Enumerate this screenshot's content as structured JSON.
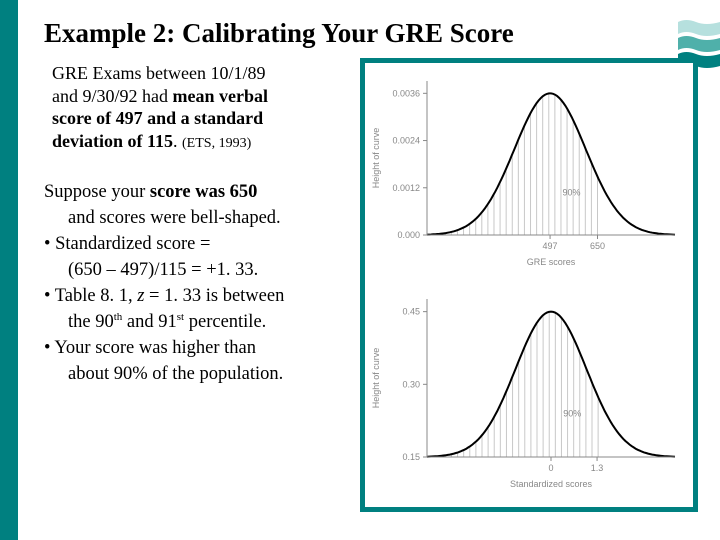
{
  "title": "Example 2:  Calibrating Your GRE Score",
  "intro": {
    "l1a": "GRE Exams between 10/1/89 ",
    "l2a": "and 9/30/92 had ",
    "l2b": "mean verbal ",
    "l3": "score of 497 and a standard ",
    "l4a": "deviation of 115",
    "l4b": ". ",
    "cite": "(ETS, 1993)"
  },
  "body": {
    "p1a": "Suppose your ",
    "p1b": "score was 650",
    "p2": "and scores were bell-shaped.",
    "b1": "• Standardized score =",
    "b1b": "(650 – 497)/115 = +1. 33.",
    "b2a": "• Table 8. 1, ",
    "b2b": "z",
    "b2c": " = 1. 33 is between ",
    "b2d": "the 90",
    "b2e": "th",
    "b2f": " and 91",
    "b2g": "st",
    "b2h": " percentile.",
    "b3a": "• Your score was higher than ",
    "b3b": "about 90% of the population."
  },
  "chart_top": {
    "ylabel": "Height of curve",
    "yticks": [
      "0.0036",
      "0.0024",
      "0.0012",
      "0.000"
    ],
    "xlabel": "GRE scores",
    "xticks": [
      "497",
      "650"
    ],
    "shade_label": "90%",
    "axis_color": "#888888",
    "curve_color": "#000000",
    "tick_color": "#888888",
    "text_color": "#888888",
    "label_fontsize": 9,
    "tick_fontsize": 9,
    "mean": 497,
    "sd": 115,
    "xrange": [
      100,
      900
    ],
    "shade_to": 650
  },
  "chart_bot": {
    "ylabel": "Height of curve",
    "yticks": [
      "0.45",
      "0.30",
      "0.15"
    ],
    "xlabel": "Standardized scores",
    "xticks": [
      "0",
      "1.3"
    ],
    "shade_label": "90%",
    "axis_color": "#888888",
    "curve_color": "#000000",
    "tick_color": "#888888",
    "text_color": "#888888",
    "label_fontsize": 9,
    "tick_fontsize": 9,
    "mean": 0,
    "sd": 1,
    "xrange": [
      -3.5,
      3.5
    ],
    "shade_to": 1.33
  },
  "colors": {
    "teal": "#008080",
    "decor_light": "#b6e0de",
    "decor_mid": "#4fb0aa"
  }
}
